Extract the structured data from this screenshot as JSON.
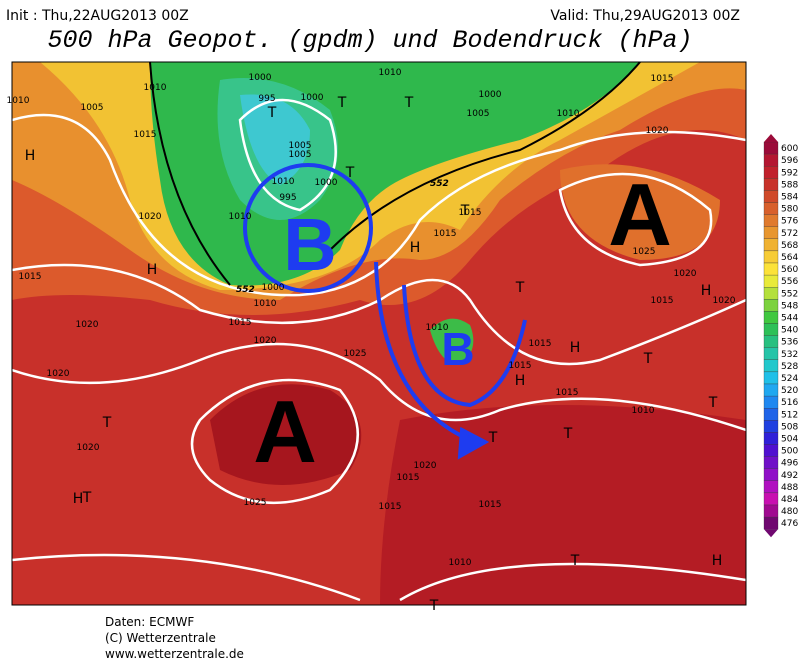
{
  "header": {
    "init": "Init : Thu,22AUG2013 00Z",
    "valid": "Valid: Thu,29AUG2013 00Z",
    "title": "500 hPa Geopot. (gpdm) und Bodendruck (hPa)"
  },
  "colorbar": {
    "labels": [
      600,
      596,
      592,
      588,
      584,
      580,
      576,
      572,
      568,
      564,
      560,
      556,
      552,
      548,
      544,
      540,
      536,
      532,
      528,
      524,
      520,
      516,
      512,
      508,
      504,
      500,
      496,
      492,
      488,
      484,
      480,
      476
    ]
  },
  "map": {
    "annotations": [
      "A",
      "A",
      "B",
      "B"
    ],
    "centers": [
      "H",
      "H",
      "H",
      "H",
      "H",
      "H",
      "H",
      "H",
      "T",
      "T",
      "T",
      "T",
      "T",
      "T",
      "T",
      "T",
      "T",
      "T",
      "T",
      "T",
      "T",
      "T"
    ],
    "contour_labels": [
      "552",
      "552"
    ],
    "isobar_labels": [
      "1010",
      "1005",
      "1015",
      "1010",
      "1000",
      "995",
      "1000",
      "1010",
      "1000",
      "1005",
      "1010",
      "1015",
      "1020",
      "1005",
      "1005",
      "1010",
      "1000",
      "995",
      "1020",
      "1010",
      "1015",
      "1020",
      "1015",
      "1020",
      "1025",
      "1015",
      "1015",
      "1010",
      "1015",
      "1015",
      "1015",
      "1020",
      "1020",
      "1025",
      "1020",
      "1015",
      "1015",
      "1015",
      "1010",
      "1025",
      "1020",
      "1020",
      "1015",
      "1010",
      "1000",
      "1010"
    ]
  },
  "footer": {
    "lines": [
      "Daten: ECMWF",
      "(C) Wetterzentrale",
      "www.wetterzentrale.de"
    ]
  }
}
